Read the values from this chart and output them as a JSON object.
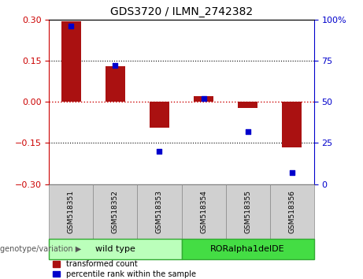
{
  "title": "GDS3720 / ILMN_2742382",
  "categories": [
    "GSM518351",
    "GSM518352",
    "GSM518353",
    "GSM518354",
    "GSM518355",
    "GSM518356"
  ],
  "bar_values": [
    0.295,
    0.13,
    -0.095,
    0.022,
    -0.022,
    -0.165
  ],
  "scatter_values": [
    96,
    72,
    20,
    52,
    32,
    7
  ],
  "ylim_left": [
    -0.3,
    0.3
  ],
  "ylim_right": [
    0,
    100
  ],
  "yticks_left": [
    -0.3,
    -0.15,
    0,
    0.15,
    0.3
  ],
  "yticks_right": [
    0,
    25,
    50,
    75,
    100
  ],
  "bar_color": "#aa1111",
  "scatter_color": "#0000cc",
  "hline_color": "#cc0000",
  "dotted_color": "black",
  "group1_label": "wild type",
  "group2_label": "RORalpha1delDE",
  "group1_color": "#bbffbb",
  "group2_color": "#44dd44",
  "genotype_label": "genotype/variation",
  "legend_bar": "transformed count",
  "legend_scatter": "percentile rank within the sample",
  "left_axis_color": "#cc0000",
  "right_axis_color": "#0000cc",
  "scatter_marker": "s",
  "scatter_size": 25,
  "bar_width": 0.45
}
